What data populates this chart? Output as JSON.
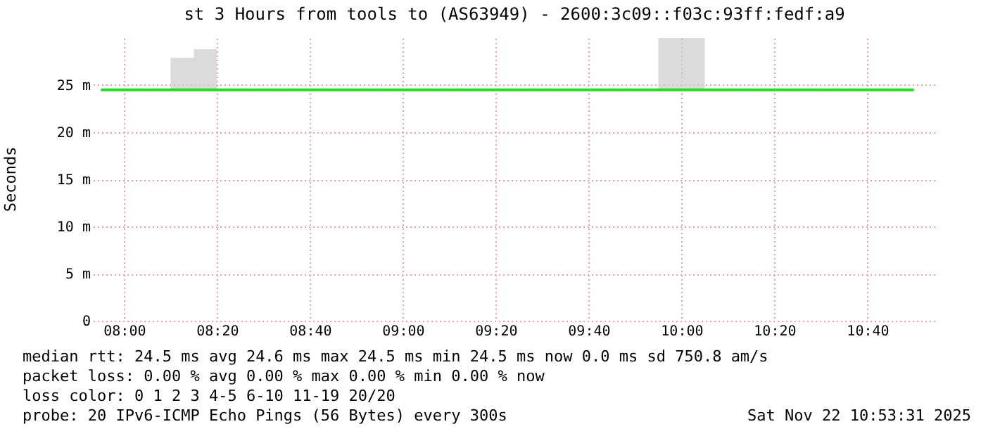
{
  "chart_data": {
    "type": "line",
    "title": "st 3 Hours from tools to (AS63949) - 2600:3c09::f03c:93ff:fedf:a9",
    "ylabel": "Seconds",
    "x": [
      7.9167,
      8.0,
      8.0833,
      8.1667,
      8.25,
      8.3333,
      8.4167,
      8.5,
      8.5833,
      8.6667,
      8.75,
      8.8333,
      8.9167,
      9.0,
      9.0833,
      9.1667,
      9.25,
      9.3333,
      9.4167,
      9.5,
      9.5833,
      9.6667,
      9.75,
      9.8333,
      9.9167,
      10.0,
      10.0833,
      10.1667,
      10.25,
      10.3333,
      10.4167,
      10.5,
      10.5833,
      10.6667,
      10.75,
      10.8333
    ],
    "series": [
      {
        "color": "#22dd22",
        "values": [
          24.5,
          24.5,
          24.5,
          24.5,
          24.5,
          24.5,
          24.5,
          24.5,
          24.5,
          24.5,
          24.5,
          24.5,
          24.5,
          24.5,
          24.5,
          24.5,
          24.5,
          24.5,
          24.5,
          24.5,
          24.5,
          24.5,
          24.5,
          24.5,
          24.5,
          24.5,
          24.5,
          24.5,
          24.5,
          24.5,
          24.5,
          24.5,
          24.5,
          24.5,
          24.5,
          24.5
        ],
        "lower": [
          24.4,
          24.4,
          24.4,
          24.4,
          24.4,
          24.4,
          24.4,
          24.4,
          24.4,
          24.4,
          24.4,
          24.4,
          24.4,
          24.4,
          24.4,
          24.4,
          24.4,
          24.4,
          24.4,
          24.4,
          24.4,
          24.4,
          24.4,
          24.4,
          24.4,
          24.4,
          24.4,
          24.4,
          24.4,
          24.4,
          24.4,
          24.4,
          24.4,
          24.4,
          24.4,
          24.4
        ],
        "upper": [
          24.6,
          24.6,
          24.6,
          27.9,
          28.8,
          24.6,
          24.6,
          24.6,
          24.6,
          24.6,
          24.6,
          24.6,
          24.6,
          24.6,
          24.6,
          24.6,
          24.6,
          24.6,
          24.6,
          24.6,
          24.6,
          24.6,
          24.6,
          24.6,
          30,
          30,
          24.6,
          24.6,
          24.6,
          24.6,
          24.6,
          24.6,
          24.6,
          24.6,
          24.6,
          24.6
        ]
      }
    ],
    "xlim": [
      7.888,
      10.913
    ],
    "xticks": [
      {
        "value": 8.0,
        "label": "08:00"
      },
      {
        "value": 8.3333,
        "label": "08:20"
      },
      {
        "value": 8.6667,
        "label": "08:40"
      },
      {
        "value": 9.0,
        "label": "09:00"
      },
      {
        "value": 9.3333,
        "label": "09:20"
      },
      {
        "value": 9.6667,
        "label": "09:40"
      },
      {
        "value": 10.0,
        "label": "10:00"
      },
      {
        "value": 10.3333,
        "label": "10:20"
      },
      {
        "value": 10.6667,
        "label": "10:40"
      }
    ],
    "ylim": [
      0,
      30
    ],
    "yticks": [
      {
        "value": 0,
        "label": "0"
      },
      {
        "value": 5,
        "label": "5 m"
      },
      {
        "value": 10,
        "label": "10 m"
      },
      {
        "value": 15,
        "label": "15 m"
      },
      {
        "value": 20,
        "label": "20 m"
      },
      {
        "value": 25,
        "label": "25 m"
      }
    ],
    "grid": true,
    "marker": "none",
    "line_style": "solid",
    "annotations": [
      "median rtt:  24.5 ms avg  24.6 ms max  24.5 ms min  24.5 ms now  0.0 ms sd  750.8  am/s",
      "packet loss: 0.00 % avg  0.00 % max  0.00 % min  0.00 % now",
      "loss color:  0  1  2  3  4-5  6-10  11-19  20/20",
      "probe:       20 IPv6-ICMP Echo Pings (56 Bytes) every 300s",
      "Sat Nov 22 10:53:31 2025"
    ]
  }
}
